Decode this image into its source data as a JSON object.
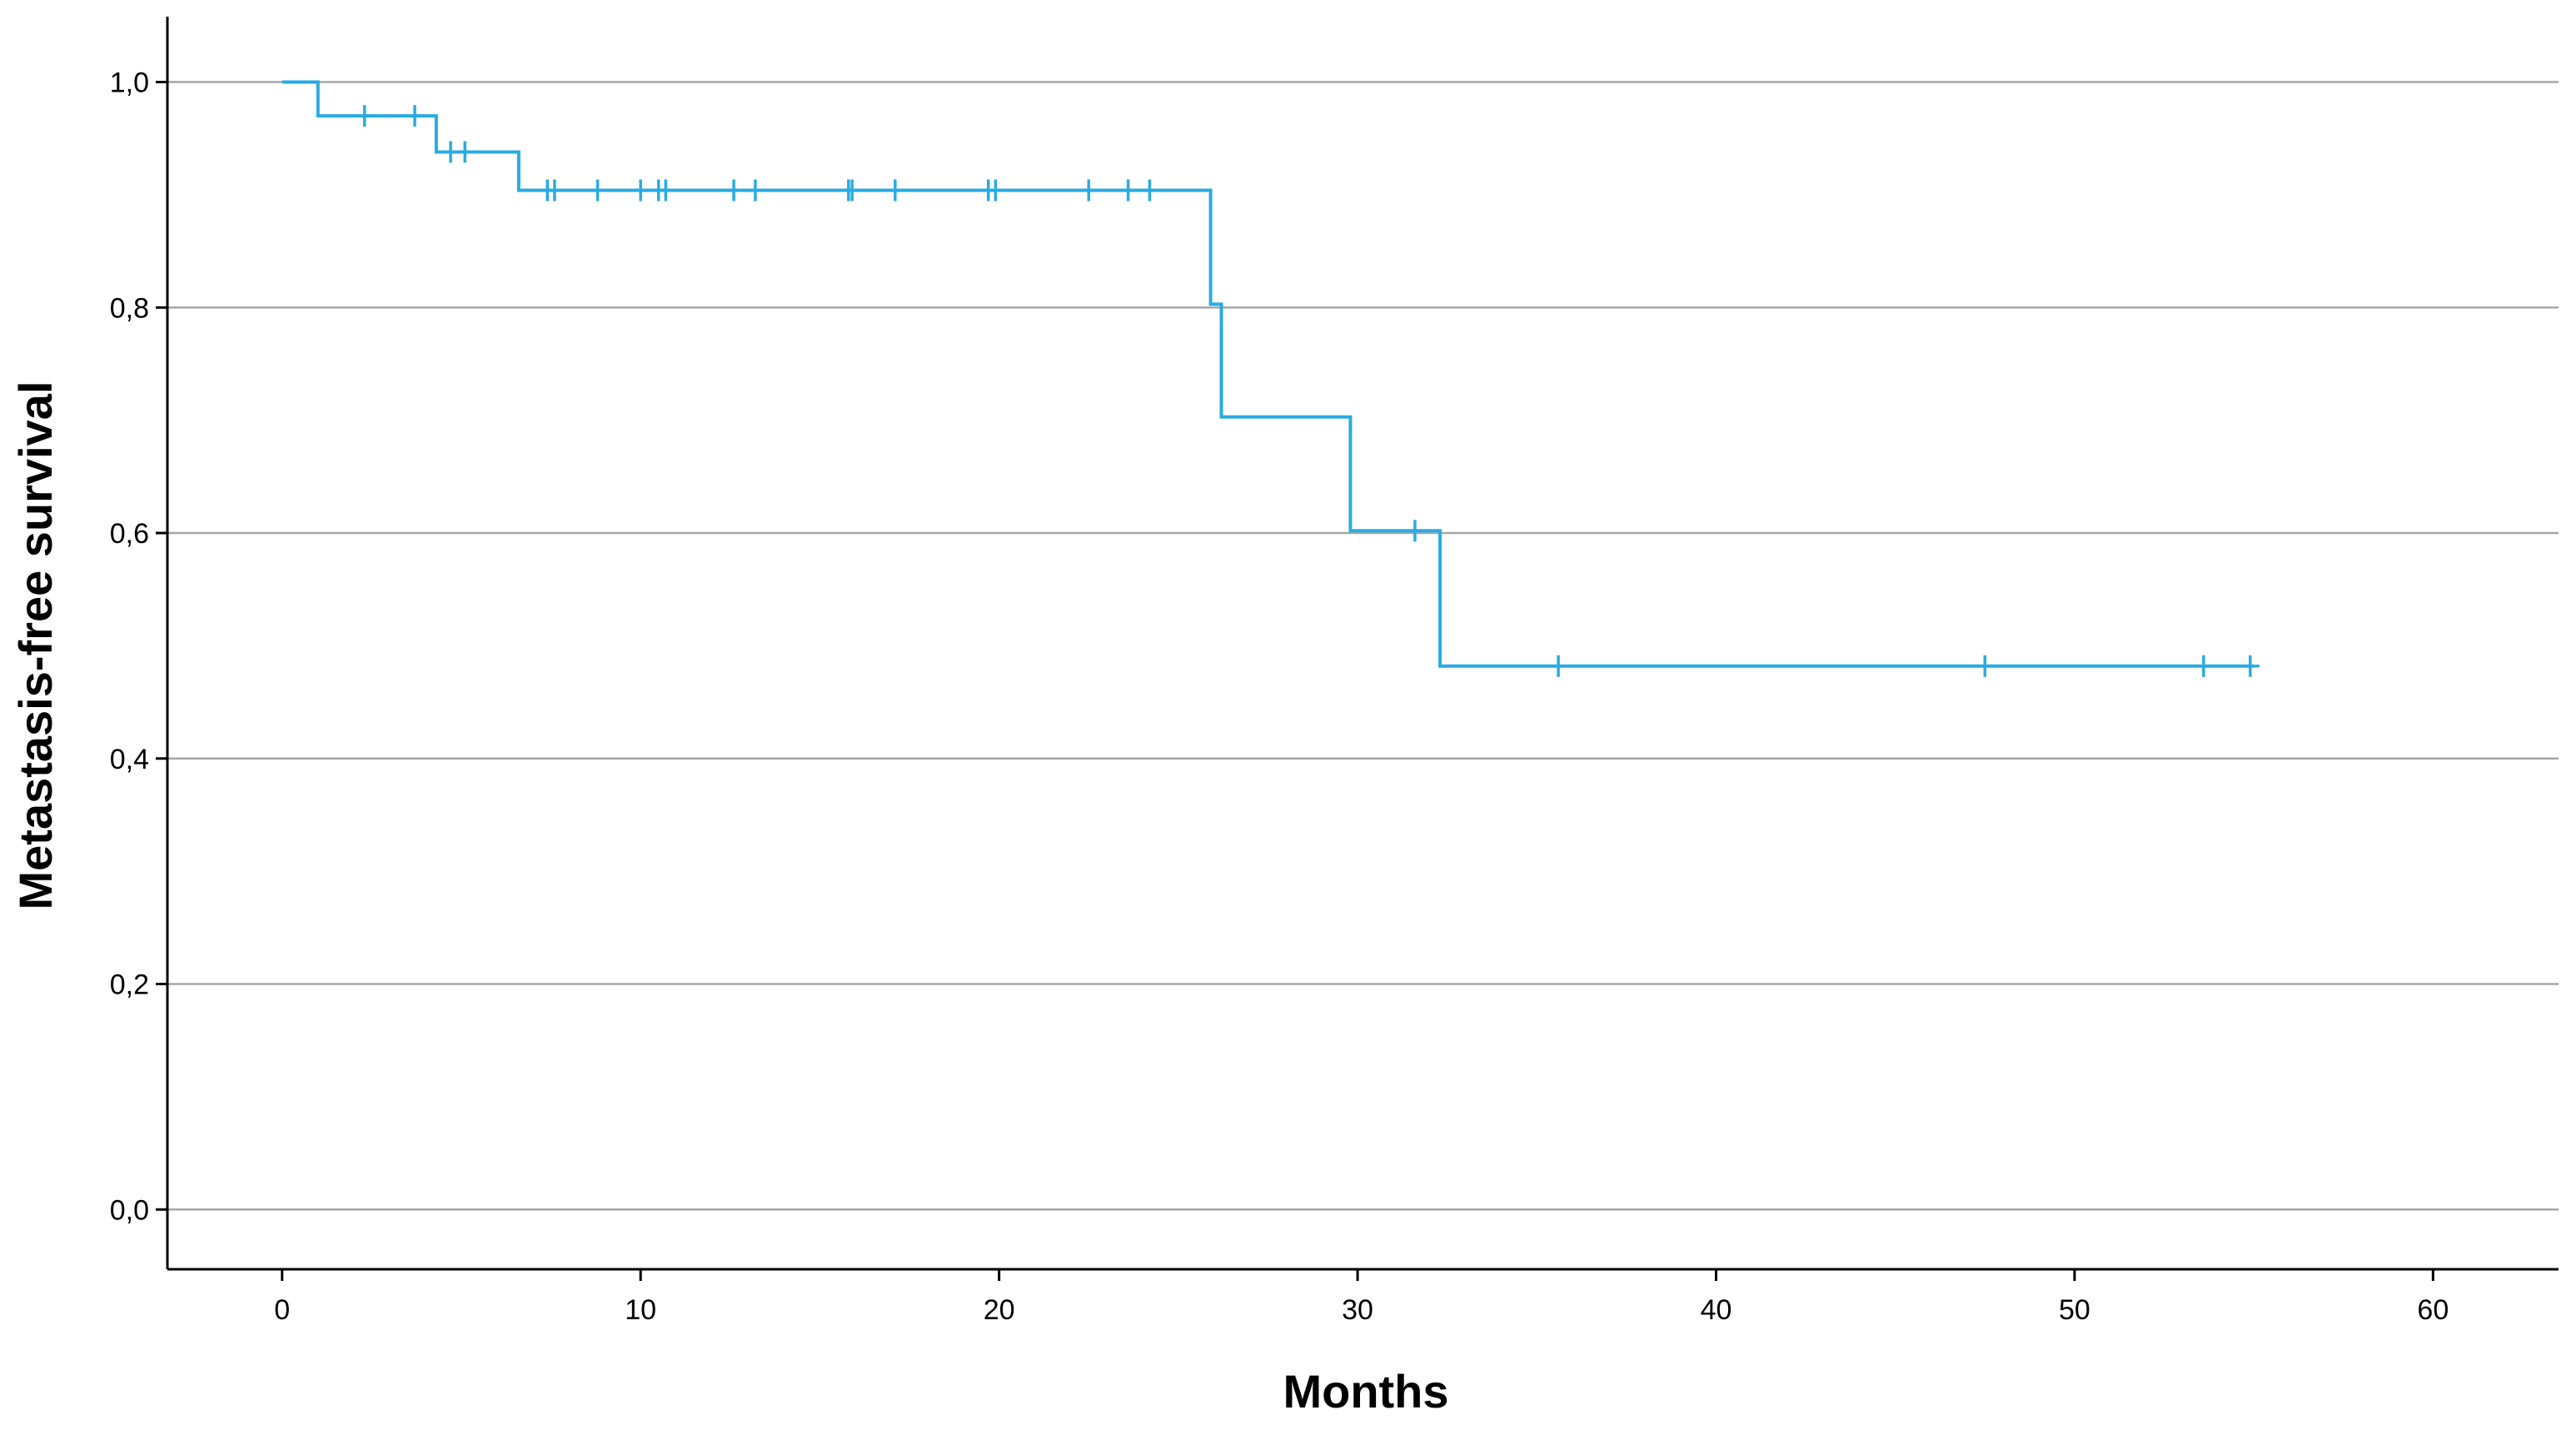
{
  "chart_data": {
    "type": "line",
    "subtype": "kaplan-meier-step",
    "title": "",
    "xlabel": "Months",
    "ylabel": "Metastasis-free survival",
    "xlim": [
      -3.2,
      63.5
    ],
    "ylim": [
      -0.053,
      1.058
    ],
    "x_ticks": [
      0,
      10,
      20,
      30,
      40,
      50,
      60
    ],
    "x_tick_labels": [
      "0",
      "10",
      "20",
      "30",
      "40",
      "50",
      "60"
    ],
    "y_ticks": [
      0.0,
      0.2,
      0.4,
      0.6,
      0.8,
      1.0
    ],
    "y_tick_labels": [
      "0,0",
      "0,2",
      "0,4",
      "0,6",
      "0,8",
      "1,0"
    ],
    "grid": "horizontal",
    "legend": "none",
    "color": "#29abe2",
    "series": [
      {
        "steps": [
          {
            "x": 0.0,
            "y": 1.0
          },
          {
            "x": 1.0,
            "y": 0.97
          },
          {
            "x": 4.3,
            "y": 0.938
          },
          {
            "x": 6.6,
            "y": 0.904
          },
          {
            "x": 25.9,
            "y": 0.803
          },
          {
            "x": 26.2,
            "y": 0.703
          },
          {
            "x": 29.8,
            "y": 0.602
          },
          {
            "x": 32.3,
            "y": 0.482
          }
        ],
        "end_x": 55.0,
        "censored": [
          {
            "x": 2.3,
            "y": 0.97
          },
          {
            "x": 3.7,
            "y": 0.97
          },
          {
            "x": 4.7,
            "y": 0.938
          },
          {
            "x": 5.1,
            "y": 0.938
          },
          {
            "x": 7.4,
            "y": 0.904
          },
          {
            "x": 7.6,
            "y": 0.904
          },
          {
            "x": 8.8,
            "y": 0.904
          },
          {
            "x": 10.0,
            "y": 0.904
          },
          {
            "x": 10.5,
            "y": 0.904
          },
          {
            "x": 10.7,
            "y": 0.904
          },
          {
            "x": 12.6,
            "y": 0.904
          },
          {
            "x": 13.2,
            "y": 0.904
          },
          {
            "x": 15.8,
            "y": 0.904
          },
          {
            "x": 15.9,
            "y": 0.904
          },
          {
            "x": 17.1,
            "y": 0.904
          },
          {
            "x": 19.7,
            "y": 0.904
          },
          {
            "x": 19.9,
            "y": 0.904
          },
          {
            "x": 22.5,
            "y": 0.904
          },
          {
            "x": 23.6,
            "y": 0.904
          },
          {
            "x": 24.2,
            "y": 0.904
          },
          {
            "x": 31.6,
            "y": 0.602
          },
          {
            "x": 35.6,
            "y": 0.482
          },
          {
            "x": 47.5,
            "y": 0.482
          },
          {
            "x": 53.6,
            "y": 0.482
          },
          {
            "x": 54.9,
            "y": 0.482
          }
        ]
      }
    ]
  }
}
